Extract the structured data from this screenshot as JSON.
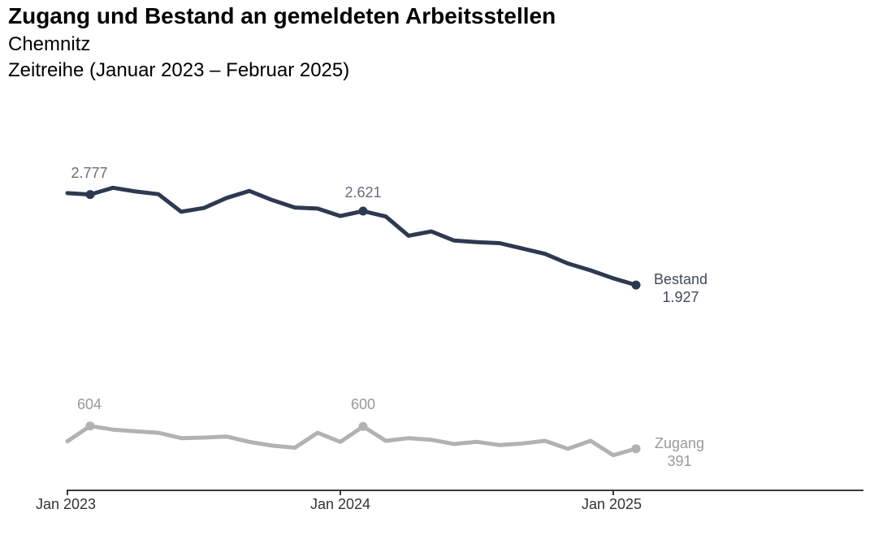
{
  "header": {
    "title": "Zugang und Bestand an gemeldeten Arbeitsstellen",
    "region": "Chemnitz",
    "period": "Zeitreihe (Januar 2023 – Februar 2025)"
  },
  "colors": {
    "bestand_line": "#2e3951",
    "zugang_line": "#b2b2b2",
    "axis": "#3c3c3c",
    "bestand_value_label": "#666d7a",
    "zugang_value_label": "#999999",
    "bestand_end_label": "#414a5c",
    "zugang_end_label": "#9a9a9a"
  },
  "chart_data": {
    "type": "line",
    "title": "Zugang und Bestand an gemeldeten Arbeitsstellen",
    "subtitle": "Chemnitz, Zeitreihe (Januar 2023 – Februar 2025)",
    "x": [
      "Jan 2023",
      "Feb 2023",
      "Mrz 2023",
      "Apr 2023",
      "Mai 2023",
      "Jun 2023",
      "Jul 2023",
      "Aug 2023",
      "Sep 2023",
      "Okt 2023",
      "Nov 2023",
      "Dez 2023",
      "Jan 2024",
      "Feb 2024",
      "Mrz 2024",
      "Apr 2024",
      "Mai 2024",
      "Jun 2024",
      "Jul 2024",
      "Aug 2024",
      "Sep 2024",
      "Okt 2024",
      "Nov 2024",
      "Dez 2024",
      "Jan 2025",
      "Feb 2025"
    ],
    "x_tick_labels": [
      "Jan 2023",
      "Jan 2024",
      "Jan 2025"
    ],
    "x_tick_indices": [
      0,
      12,
      24
    ],
    "grid": false,
    "legend_position": "line-end",
    "ylim": [
      0,
      3200
    ],
    "series": [
      {
        "name": "Bestand",
        "color": "#2e3951",
        "values": [
          2790,
          2777,
          2840,
          2805,
          2780,
          2615,
          2650,
          2745,
          2810,
          2725,
          2655,
          2645,
          2575,
          2621,
          2570,
          2390,
          2430,
          2345,
          2330,
          2320,
          2270,
          2220,
          2130,
          2065,
          1990,
          1927
        ],
        "labeled_points": [
          {
            "index": 1,
            "label": "2.777"
          },
          {
            "index": 13,
            "label": "2.621"
          },
          {
            "index": 25,
            "label": "1.927"
          }
        ],
        "end_value_label": "1.927"
      },
      {
        "name": "Zugang",
        "color": "#b2b2b2",
        "values": [
          460,
          604,
          570,
          555,
          540,
          490,
          495,
          505,
          455,
          420,
          400,
          540,
          455,
          600,
          465,
          490,
          475,
          435,
          455,
          425,
          440,
          465,
          390,
          465,
          330,
          391
        ],
        "labeled_points": [
          {
            "index": 1,
            "label": "604"
          },
          {
            "index": 13,
            "label": "600"
          },
          {
            "index": 25,
            "label": "391"
          }
        ],
        "end_value_label": "391"
      }
    ]
  }
}
